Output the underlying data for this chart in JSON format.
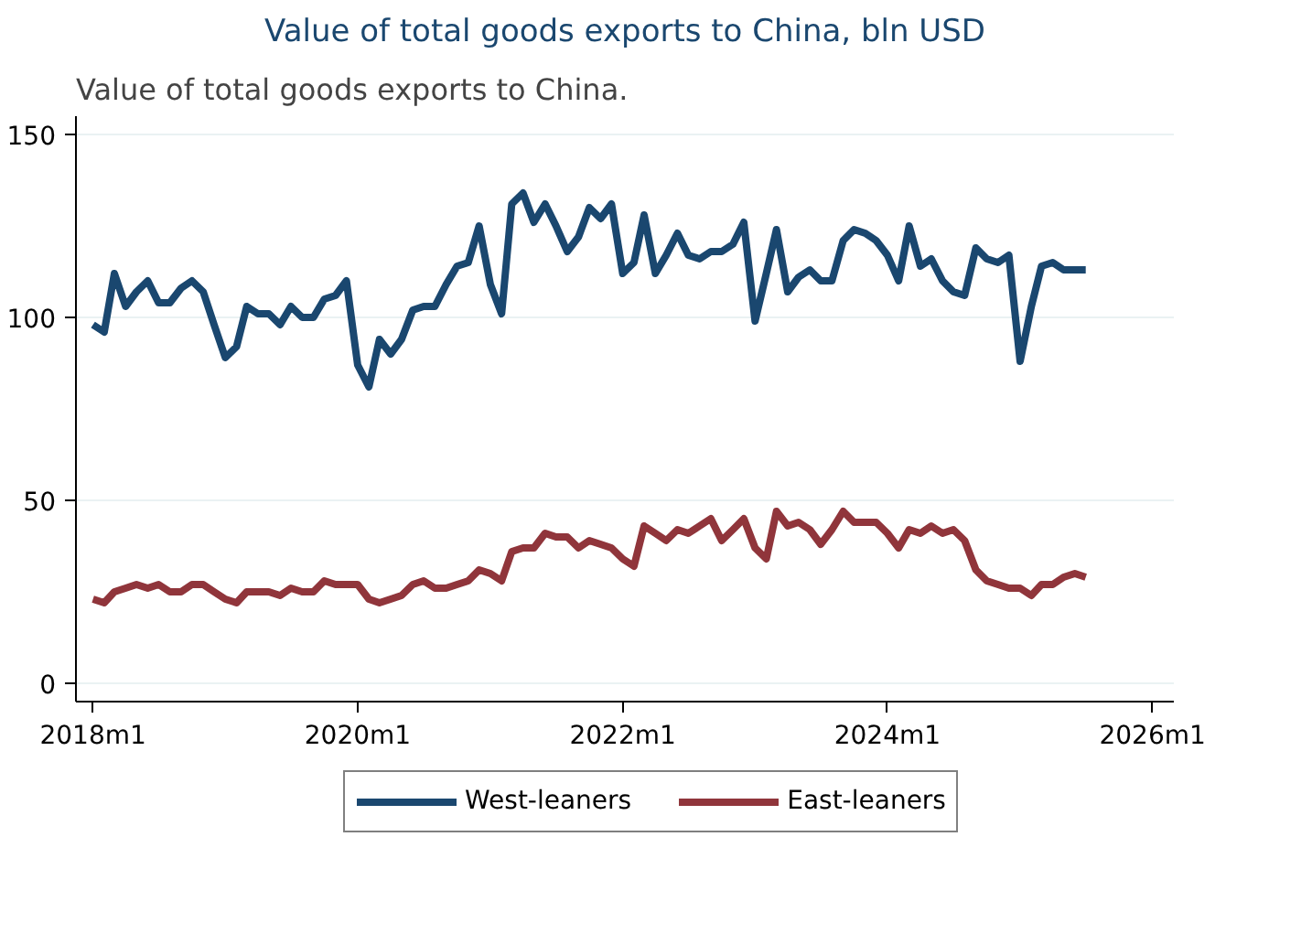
{
  "chart_data": {
    "type": "line",
    "title": "Value of total goods exports to China, bln USD",
    "annotations": [
      "Value of total goods exports to China."
    ],
    "x": [
      "2018-01",
      "2018-02",
      "2018-03",
      "2018-04",
      "2018-05",
      "2018-06",
      "2018-07",
      "2018-08",
      "2018-09",
      "2018-10",
      "2018-11",
      "2018-12",
      "2019-01",
      "2019-02",
      "2019-03",
      "2019-04",
      "2019-05",
      "2019-06",
      "2019-07",
      "2019-08",
      "2019-09",
      "2019-10",
      "2019-11",
      "2019-12",
      "2020-01",
      "2020-02",
      "2020-03",
      "2020-04",
      "2020-05",
      "2020-06",
      "2020-07",
      "2020-08",
      "2020-09",
      "2020-10",
      "2020-11",
      "2020-12",
      "2021-01",
      "2021-02",
      "2021-03",
      "2021-04",
      "2021-05",
      "2021-06",
      "2021-07",
      "2021-08",
      "2021-09",
      "2021-10",
      "2021-11",
      "2021-12",
      "2022-01",
      "2022-02",
      "2022-03",
      "2022-04",
      "2022-05",
      "2022-06",
      "2022-07",
      "2022-08",
      "2022-09",
      "2022-10",
      "2022-11",
      "2022-12",
      "2023-01",
      "2023-02",
      "2023-03",
      "2023-04",
      "2023-05",
      "2023-06",
      "2023-07",
      "2023-08",
      "2023-09",
      "2023-10",
      "2023-11",
      "2023-12",
      "2024-01",
      "2024-02",
      "2024-03",
      "2024-04",
      "2024-05",
      "2024-06",
      "2024-07",
      "2024-08",
      "2024-09",
      "2024-10",
      "2024-11",
      "2024-12",
      "2025-01",
      "2025-02",
      "2025-03",
      "2025-04",
      "2025-05",
      "2025-06",
      "2025-07"
    ],
    "series": [
      {
        "name": "West-leaners",
        "color": "#1a476f",
        "values": [
          98,
          96,
          112,
          103,
          107,
          110,
          104,
          104,
          108,
          110,
          107,
          98,
          89,
          92,
          103,
          101,
          101,
          98,
          103,
          100,
          100,
          105,
          106,
          110,
          87,
          81,
          94,
          90,
          94,
          102,
          103,
          103,
          109,
          114,
          115,
          125,
          109,
          101,
          131,
          134,
          126,
          131,
          125,
          118,
          122,
          130,
          127,
          131,
          112,
          115,
          128,
          112,
          117,
          123,
          117,
          116,
          118,
          118,
          120,
          126,
          99,
          112,
          124,
          107,
          111,
          113,
          110,
          110,
          121,
          124,
          123,
          121,
          117,
          110,
          125,
          114,
          116,
          110,
          107,
          106,
          119,
          116,
          115,
          117,
          88,
          103,
          114,
          115,
          113,
          113,
          113
        ]
      },
      {
        "name": "East-leaners",
        "color": "#90353b",
        "values": [
          23,
          22,
          25,
          26,
          27,
          26,
          27,
          25,
          25,
          27,
          27,
          25,
          23,
          22,
          25,
          25,
          25,
          24,
          26,
          25,
          25,
          28,
          27,
          27,
          27,
          23,
          22,
          23,
          24,
          27,
          28,
          26,
          26,
          27,
          28,
          31,
          30,
          28,
          36,
          37,
          37,
          41,
          40,
          40,
          37,
          39,
          38,
          37,
          34,
          32,
          43,
          41,
          39,
          42,
          41,
          43,
          45,
          39,
          42,
          45,
          37,
          34,
          47,
          43,
          44,
          42,
          38,
          42,
          47,
          44,
          44,
          44,
          41,
          37,
          42,
          41,
          43,
          41,
          42,
          39,
          31,
          28,
          27,
          26,
          26,
          24,
          27,
          27,
          29,
          30,
          29
        ]
      }
    ],
    "xlim": [
      "2017-11-15",
      "2026-03"
    ],
    "xticks": [
      {
        "value": "2018-01",
        "label": "2018m1"
      },
      {
        "value": "2020-01",
        "label": "2020m1"
      },
      {
        "value": "2022-01",
        "label": "2022m1"
      },
      {
        "value": "2024-01",
        "label": "2024m1"
      },
      {
        "value": "2026-01",
        "label": "2026m1"
      }
    ],
    "ylim": [
      -5,
      155
    ],
    "yticks": [
      0,
      50,
      100,
      150
    ],
    "grid": "y",
    "legend": "bottom",
    "line_style": "solid",
    "marker": "none"
  }
}
